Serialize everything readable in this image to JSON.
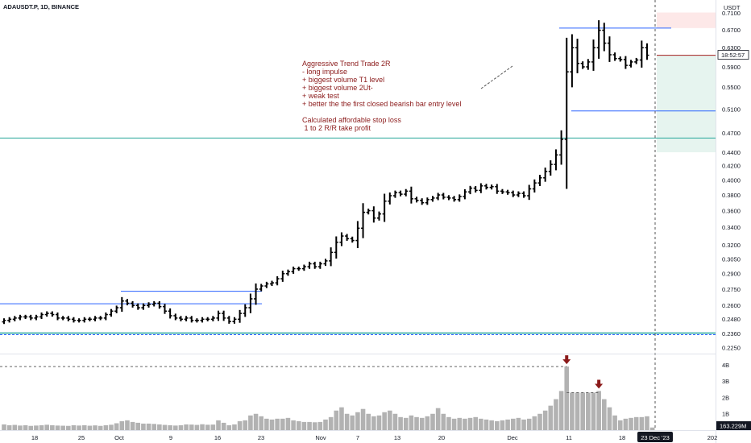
{
  "header": {
    "symbol_title": "ADAUSDT.P, 1D, BINANCE",
    "currency": "USDT"
  },
  "annotation": {
    "lines": [
      "Aggressive Trend Trade 2R",
      "- long impulse",
      "+ biggest volume T1 level",
      "+ biggest volume 2Ut-",
      "+ weak test",
      "+ better the the first closed bearish bar entry level",
      "",
      "Calculated affordable stop loss",
      " 1 to 2 R/R take profit"
    ]
  },
  "price_axis": {
    "ticks": [
      "0.7100",
      "0.6700",
      "0.6300",
      "0.5900",
      "0.5500",
      "0.5100",
      "0.4700",
      "0.4400",
      "0.4200",
      "0.4000",
      "0.3800",
      "0.3600",
      "0.3400",
      "0.3200",
      "0.3050",
      "0.2900",
      "0.2750",
      "0.2600",
      "0.2480",
      "0.2360",
      "0.2250"
    ],
    "countdown_label": "18:52:57"
  },
  "volume_axis": {
    "ticks": [
      "4B",
      "3B",
      "2B",
      "1B"
    ],
    "current_label": "163.229M"
  },
  "time_axis": {
    "ticks": [
      "18",
      "25",
      "Oct",
      "9",
      "16",
      "23",
      "Nov",
      "7",
      "13",
      "20",
      "Dec",
      "11",
      "18",
      "202"
    ],
    "crosshair_label": "23 Dec '23"
  },
  "colors": {
    "candle": "#000000",
    "level_line": "#2962ff",
    "support_line": "#26a69a",
    "annotation_text": "#8b1a1a",
    "stop_zone": "#fde8e8",
    "target_zone": "#e6f4ef",
    "entry_line": "#a31c1c",
    "volume_bar": "#b2b2b2",
    "volume_arrow": "#8b1a1a"
  },
  "chart_data": {
    "type": "ohlc",
    "title": "ADAUSDT.P, 1D, BINANCE",
    "price_scale": "log",
    "ylim": [
      0.221,
      0.73
    ],
    "closes": [
      0.247,
      0.248,
      0.249,
      0.25,
      0.25,
      0.249,
      0.25,
      0.252,
      0.253,
      0.252,
      0.249,
      0.249,
      0.248,
      0.247,
      0.247,
      0.248,
      0.248,
      0.249,
      0.249,
      0.252,
      0.255,
      0.258,
      0.264,
      0.262,
      0.26,
      0.258,
      0.26,
      0.261,
      0.262,
      0.259,
      0.255,
      0.251,
      0.249,
      0.248,
      0.249,
      0.247,
      0.247,
      0.248,
      0.248,
      0.249,
      0.253,
      0.249,
      0.246,
      0.248,
      0.253,
      0.258,
      0.266,
      0.275,
      0.278,
      0.28,
      0.281,
      0.285,
      0.29,
      0.292,
      0.295,
      0.295,
      0.297,
      0.3,
      0.297,
      0.3,
      0.303,
      0.312,
      0.323,
      0.33,
      0.327,
      0.325,
      0.339,
      0.358,
      0.36,
      0.351,
      0.356,
      0.372,
      0.379,
      0.383,
      0.381,
      0.385,
      0.375,
      0.373,
      0.37,
      0.374,
      0.376,
      0.38,
      0.377,
      0.376,
      0.374,
      0.378,
      0.384,
      0.389,
      0.386,
      0.392,
      0.39,
      0.391,
      0.385,
      0.384,
      0.383,
      0.38,
      0.382,
      0.379,
      0.388,
      0.396,
      0.403,
      0.412,
      0.422,
      0.436,
      0.46,
      0.58,
      0.63,
      0.597,
      0.59,
      0.6,
      0.63,
      0.669,
      0.64,
      0.615,
      0.607,
      0.605,
      0.593,
      0.6,
      0.604,
      0.63,
      0.614
    ],
    "volume": [
      0.35,
      0.3,
      0.32,
      0.28,
      0.3,
      0.26,
      0.28,
      0.3,
      0.33,
      0.3,
      0.28,
      0.27,
      0.26,
      0.3,
      0.28,
      0.3,
      0.27,
      0.29,
      0.26,
      0.3,
      0.33,
      0.42,
      0.55,
      0.6,
      0.5,
      0.45,
      0.4,
      0.4,
      0.38,
      0.35,
      0.32,
      0.3,
      0.28,
      0.3,
      0.35,
      0.34,
      0.32,
      0.36,
      0.33,
      0.34,
      0.6,
      0.45,
      0.3,
      0.35,
      0.55,
      0.6,
      0.9,
      1.0,
      0.85,
      0.7,
      0.65,
      0.7,
      0.7,
      0.75,
      0.6,
      0.55,
      0.5,
      0.5,
      0.48,
      0.5,
      0.65,
      0.8,
      1.2,
      1.4,
      1.0,
      0.9,
      1.1,
      1.3,
      1.0,
      0.85,
      0.9,
      1.1,
      1.2,
      1.0,
      0.8,
      0.75,
      0.9,
      0.8,
      0.75,
      0.85,
      1.0,
      1.35,
      1.0,
      0.8,
      0.7,
      0.75,
      0.7,
      0.75,
      0.8,
      0.7,
      0.65,
      0.6,
      0.55,
      0.6,
      0.65,
      0.7,
      0.75,
      0.65,
      0.7,
      0.85,
      1.0,
      1.2,
      1.5,
      1.9,
      2.4,
      3.9,
      2.3,
      2.3,
      2.3,
      2.3,
      2.3,
      2.4,
      1.9,
      1.4,
      0.9,
      0.6,
      0.7,
      0.75,
      0.8,
      0.8,
      0.85,
      0.16
    ],
    "levels": {
      "horizontal_lines": [
        0.674,
        0.507,
        0.462,
        0.2615,
        0.273
      ],
      "support": 0.2365,
      "stop_zone": [
        0.674,
        0.711
      ],
      "entry": 0.614,
      "target_zone": [
        0.44,
        0.614
      ]
    }
  }
}
